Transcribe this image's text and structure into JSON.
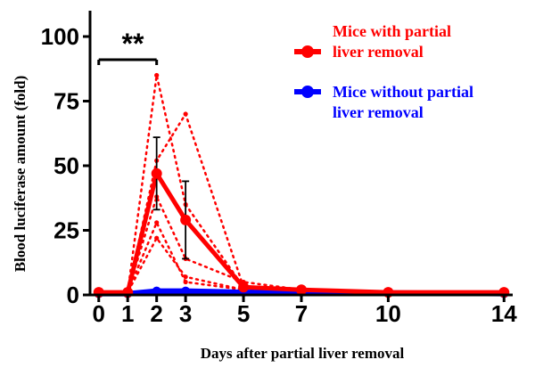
{
  "chart_data": {
    "type": "line",
    "xlabel": "Days after partial liver removal",
    "ylabel": "Blood luciferase amount (fold)",
    "xticks": [
      0,
      1,
      2,
      3,
      5,
      7,
      10,
      14
    ],
    "yticks": [
      0,
      25,
      50,
      75,
      100
    ],
    "xlim": [
      -0.3,
      14.3
    ],
    "ylim": [
      0,
      110
    ],
    "grid": false,
    "legend_position": "top-right",
    "significance": {
      "label": "**",
      "x_from": 0,
      "x_to": 2
    },
    "series": [
      {
        "name": "Mice with partial liver removal",
        "color": "#ff0000",
        "x": [
          0,
          1,
          2,
          3,
          5,
          7,
          10,
          14
        ],
        "values": [
          1,
          1,
          47,
          29,
          3,
          2,
          1,
          1
        ],
        "error": [
          0,
          0,
          14,
          15,
          0,
          0,
          0,
          0
        ]
      },
      {
        "name": "Mice without partial liver removal",
        "color": "#0000ff",
        "x": [
          0,
          1,
          2,
          3,
          5,
          7,
          10,
          14
        ],
        "values": [
          0.5,
          0.5,
          1.5,
          1.5,
          1,
          1,
          0.8,
          0.5
        ],
        "error": [
          0,
          0,
          0,
          0,
          0,
          0,
          0,
          0
        ]
      }
    ],
    "individual_series": [
      {
        "color": "#ff0000",
        "x": [
          0,
          1,
          2,
          3,
          5,
          7,
          10,
          14
        ],
        "values": [
          1,
          1,
          85,
          35,
          3,
          2,
          1,
          1
        ]
      },
      {
        "color": "#ff0000",
        "x": [
          0,
          1,
          2,
          3,
          5,
          7,
          10,
          14
        ],
        "values": [
          1,
          1,
          52,
          70,
          3,
          2,
          1,
          1
        ]
      },
      {
        "color": "#ff0000",
        "x": [
          0,
          1,
          2,
          3,
          5,
          7,
          10,
          14
        ],
        "values": [
          1,
          1,
          38,
          14,
          5,
          2,
          1,
          1
        ]
      },
      {
        "color": "#ff0000",
        "x": [
          0,
          1,
          2,
          3,
          5,
          7,
          10,
          14
        ],
        "values": [
          1,
          1,
          28,
          5,
          2,
          2,
          1,
          1
        ]
      },
      {
        "color": "#ff0000",
        "x": [
          0,
          1,
          2,
          3,
          5,
          7,
          10,
          14
        ],
        "values": [
          1,
          1,
          22,
          7,
          2,
          2,
          1,
          1
        ]
      }
    ]
  }
}
